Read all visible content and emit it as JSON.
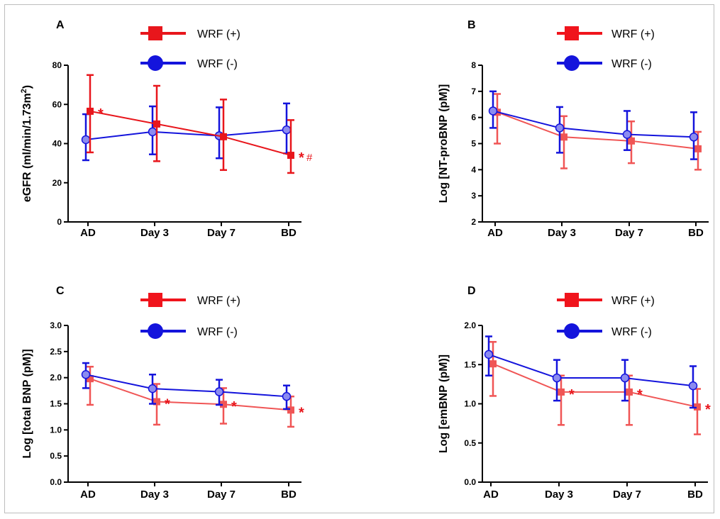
{
  "colors": {
    "wrf_pos_A": "#e8161c",
    "wrf_pos": "#f05555",
    "wrf_neg": "#1414dc",
    "wrf_neg_fill": "#8b8bf0",
    "axis": "#000000"
  },
  "chart_data": [
    {
      "id": "A",
      "panel_label": "A",
      "type": "line",
      "ylabel": "eGFR (ml/min/1.73m²)",
      "ylim": [
        0,
        80
      ],
      "yticks": [
        "0",
        "20",
        "40",
        "60",
        "80"
      ],
      "categories": [
        "AD",
        "Day 3",
        "Day 7",
        "BD"
      ],
      "legend": [
        "WRF (+)",
        "WRF (-)"
      ],
      "series": [
        {
          "name": "WRF (+)",
          "marker": "square",
          "values": [
            56.5,
            50,
            43.5,
            34
          ],
          "err_low": [
            35.5,
            31,
            26.5,
            25
          ],
          "err_high": [
            75,
            69.5,
            62.5,
            52
          ]
        },
        {
          "name": "WRF (-)",
          "marker": "circle",
          "values": [
            42,
            46,
            44,
            47
          ],
          "err_low": [
            31.5,
            34.5,
            32.5,
            35
          ],
          "err_high": [
            55,
            59,
            58.5,
            60.5
          ]
        }
      ],
      "annotations": [
        {
          "category_index": 0,
          "text": "*",
          "hash": ""
        },
        {
          "category_index": 3,
          "text": "*",
          "hash": "#"
        }
      ]
    },
    {
      "id": "B",
      "panel_label": "B",
      "type": "line",
      "ylabel": "Log [NT-proBNP (pM)]",
      "ylim": [
        2,
        8
      ],
      "yticks": [
        "2",
        "3",
        "4",
        "5",
        "6",
        "7",
        "8"
      ],
      "categories": [
        "AD",
        "Day 3",
        "Day 7",
        "BD"
      ],
      "legend": [
        "WRF (+)",
        "WRF (-)"
      ],
      "series": [
        {
          "name": "WRF (+)",
          "marker": "square",
          "values": [
            6.2,
            5.25,
            5.1,
            4.8
          ],
          "err_low": [
            5.0,
            4.05,
            4.25,
            4.0
          ],
          "err_high": [
            6.9,
            6.05,
            5.85,
            5.45
          ]
        },
        {
          "name": "WRF (-)",
          "marker": "circle",
          "values": [
            6.25,
            5.6,
            5.35,
            5.25
          ],
          "err_low": [
            5.6,
            4.65,
            4.75,
            4.4
          ],
          "err_high": [
            7.0,
            6.4,
            6.25,
            6.2
          ]
        }
      ],
      "annotations": []
    },
    {
      "id": "C",
      "panel_label": "C",
      "type": "line",
      "ylabel": "Log [total BNP (pM)]",
      "ylim": [
        0,
        3
      ],
      "yticks": [
        "0.0",
        "0.5",
        "1.0",
        "1.5",
        "2.0",
        "2.5",
        "3.0"
      ],
      "categories": [
        "AD",
        "Day 3",
        "Day 7",
        "BD"
      ],
      "legend": [
        "WRF (+)",
        "WRF (-)"
      ],
      "series": [
        {
          "name": "WRF (+)",
          "marker": "square",
          "values": [
            1.98,
            1.54,
            1.49,
            1.38
          ],
          "err_low": [
            1.48,
            1.1,
            1.12,
            1.06
          ],
          "err_high": [
            2.21,
            1.88,
            1.8,
            1.64
          ]
        },
        {
          "name": "WRF (-)",
          "marker": "circle",
          "values": [
            2.06,
            1.79,
            1.73,
            1.64
          ],
          "err_low": [
            1.8,
            1.5,
            1.48,
            1.4
          ],
          "err_high": [
            2.28,
            2.06,
            1.96,
            1.85
          ]
        }
      ],
      "annotations": [
        {
          "category_index": 1,
          "text": "*",
          "hash": ""
        },
        {
          "category_index": 2,
          "text": "*",
          "hash": ""
        },
        {
          "category_index": 3,
          "text": "*",
          "hash": ""
        }
      ]
    },
    {
      "id": "D",
      "panel_label": "D",
      "type": "line",
      "ylabel": "Log [emBNP (pM)]",
      "ylim": [
        0,
        2
      ],
      "yticks": [
        "0.0",
        "0.5",
        "1.0",
        "1.5",
        "2.0"
      ],
      "categories": [
        "AD",
        "Day 3",
        "Day 7",
        "BD"
      ],
      "legend": [
        "WRF (+)",
        "WRF (-)"
      ],
      "series": [
        {
          "name": "WRF (+)",
          "marker": "square",
          "values": [
            1.51,
            1.15,
            1.15,
            0.96
          ],
          "err_low": [
            1.1,
            0.73,
            0.73,
            0.61
          ],
          "err_high": [
            1.79,
            1.36,
            1.36,
            1.19
          ]
        },
        {
          "name": "WRF (-)",
          "marker": "circle",
          "values": [
            1.63,
            1.33,
            1.33,
            1.23
          ],
          "err_low": [
            1.36,
            1.04,
            1.04,
            0.95
          ],
          "err_high": [
            1.86,
            1.56,
            1.56,
            1.48
          ]
        }
      ],
      "annotations": [
        {
          "category_index": 1,
          "text": "*",
          "hash": ""
        },
        {
          "category_index": 2,
          "text": "*",
          "hash": ""
        },
        {
          "category_index": 3,
          "text": "*",
          "hash": ""
        }
      ]
    }
  ]
}
